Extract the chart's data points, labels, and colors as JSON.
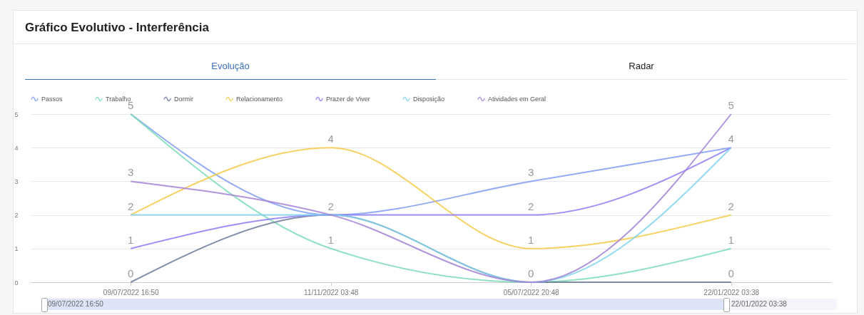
{
  "chart_data": {
    "type": "line",
    "title": "Gráfico Evolutivo - Interferência",
    "annotations": [
      "Evolução",
      "Radar",
      "09/07/2022 16:50",
      "22/01/2022 03:38"
    ],
    "categories": [
      "09/07/2022 16:50",
      "11/11/2022 03:48",
      "05/07/2022 20:48",
      "22/01/2022 03:38"
    ],
    "series": [
      {
        "name": "Passos",
        "color": "#7f9ef5",
        "values": [
          5,
          2,
          3,
          4
        ],
        "value_labels": [
          "5",
          "2",
          "3",
          "4"
        ]
      },
      {
        "name": "Trabalho",
        "color": "#7bdcb5",
        "values": [
          5,
          1,
          0,
          1
        ],
        "value_labels": [
          null,
          "1",
          "0",
          "1"
        ]
      },
      {
        "name": "Dormir",
        "color": "#6b7a99",
        "values": [
          0,
          2,
          0,
          0
        ],
        "value_labels": [
          "0",
          null,
          null,
          "0"
        ]
      },
      {
        "name": "Relacionamento",
        "color": "#f7c948",
        "values": [
          2,
          4,
          1,
          2
        ],
        "value_labels": [
          "2",
          "4",
          "1",
          "2"
        ]
      },
      {
        "name": "Prazer de Viver",
        "color": "#8c7cf7",
        "values": [
          1,
          2,
          2,
          4
        ],
        "value_labels": [
          "1",
          null,
          "2",
          null
        ]
      },
      {
        "name": "Disposição",
        "color": "#7fd3ef",
        "values": [
          2,
          2,
          0,
          4
        ],
        "value_labels": [
          null,
          null,
          null,
          null
        ]
      },
      {
        "name": "Atividades em Geral",
        "color": "#a383d6",
        "values": [
          3,
          2,
          0,
          5
        ],
        "value_labels": [
          "3",
          null,
          null,
          "5"
        ]
      }
    ],
    "ylim": [
      0,
      5
    ],
    "yticks": [
      0,
      1,
      2,
      3,
      4,
      5
    ],
    "grid": "y",
    "legend": "top left"
  }
}
